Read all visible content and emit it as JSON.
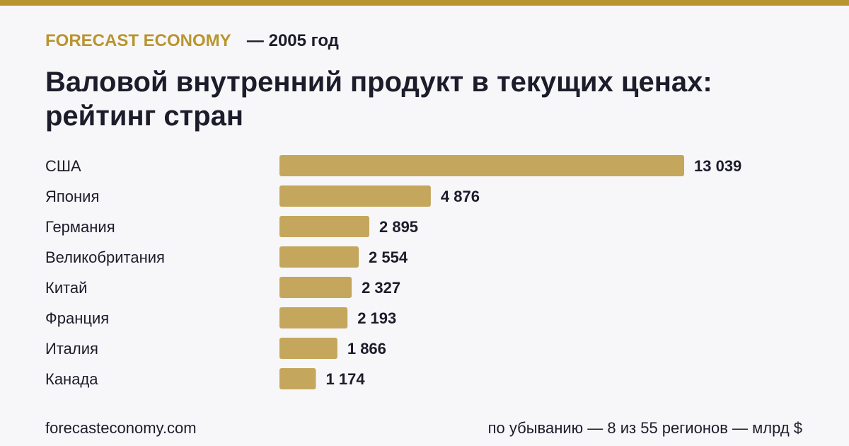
{
  "brand": "FORECAST ECONOMY",
  "year_label": "— 2005 год",
  "title": "Валовой внутренний продукт в текущих ценах: рейтинг стран",
  "colors": {
    "accent": "#b8952f",
    "bar": "#c4a75c",
    "text": "#1c1c2b",
    "background": "#f7f7fa"
  },
  "chart_data": {
    "type": "bar",
    "orientation": "horizontal",
    "categories": [
      "США",
      "Япония",
      "Германия",
      "Великобритания",
      "Китай",
      "Франция",
      "Италия",
      "Канада"
    ],
    "values": [
      13039,
      4876,
      2895,
      2554,
      2327,
      2193,
      1866,
      1174
    ],
    "value_labels": [
      "13 039",
      "4 876",
      "2 895",
      "2 554",
      "2 327",
      "2 193",
      "1 866",
      "1 174"
    ],
    "xlim": [
      0,
      13039
    ],
    "grid": false,
    "legend": "none"
  },
  "footer": {
    "source": "forecasteconomy.com",
    "note": "по убыванию — 8 из 55 регионов — млрд $"
  }
}
